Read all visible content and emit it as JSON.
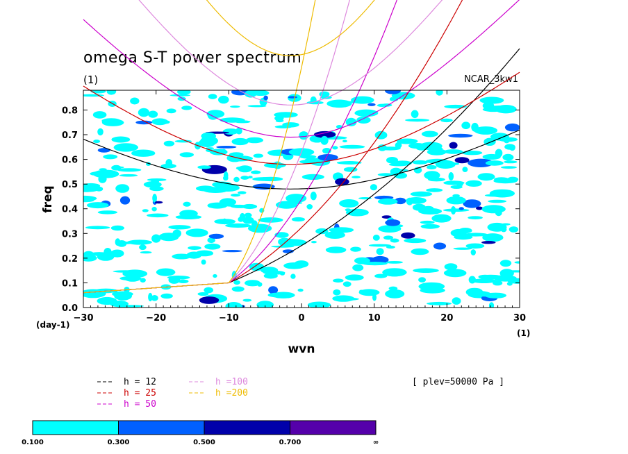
{
  "chart_data": {
    "type": "contour",
    "title": "omega S-T power spectrum",
    "subtitle": "(1)",
    "model_label": "NCAR_3kw1",
    "level_label": "[ plev=50000 Pa ]",
    "xlabel": "wvn",
    "ylabel": "freq",
    "x_unit": "(1)",
    "y_unit": "(day-1)",
    "xlim": [
      -30,
      30
    ],
    "ylim": [
      0.0,
      0.88
    ],
    "x_ticks": [
      "−30",
      "−20",
      "−10",
      "0",
      "10",
      "20",
      "30"
    ],
    "y_ticks": [
      "0.0",
      "0.1",
      "0.2",
      "0.3",
      "0.4",
      "0.5",
      "0.6",
      "0.7",
      "0.8"
    ],
    "dispersion_curves": [
      {
        "label": "h = 12",
        "h": 12,
        "color": "#000000"
      },
      {
        "label": "h = 25",
        "h": 25,
        "color": "#cc0000"
      },
      {
        "label": "h = 50",
        "h": 50,
        "color": "#cc00cc"
      },
      {
        "label": "h =100",
        "h": 100,
        "color": "#dd88dd"
      },
      {
        "label": "h =200",
        "h": 200,
        "color": "#eebb00"
      }
    ],
    "colorbar": {
      "labels": [
        "0.100",
        "0.300",
        "0.500",
        "0.700",
        "∞"
      ],
      "colors": [
        "#00ffff",
        "#0060ff",
        "#0000aa",
        "#5500aa"
      ]
    }
  }
}
